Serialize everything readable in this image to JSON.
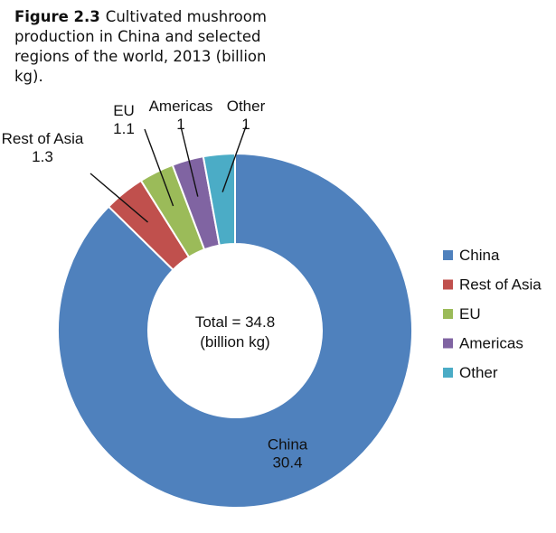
{
  "caption": {
    "figure_label": "Figure 2.3",
    "title": "Cultivated mushroom production in China and selected regions of the world, 2013 (billion kg)."
  },
  "chart_data": {
    "type": "pie",
    "variant": "donut",
    "center_text": [
      "Total = 34.8",
      "(billion kg)"
    ],
    "legend_position": "right",
    "slices": [
      {
        "name": "China",
        "value": 30.4,
        "value_label": "30.4",
        "color": "#4f81bd"
      },
      {
        "name": "Rest of Asia",
        "value": 1.3,
        "value_label": "1.3",
        "color": "#c0504d"
      },
      {
        "name": "EU",
        "value": 1.1,
        "value_label": "1.1",
        "color": "#9bbb59"
      },
      {
        "name": "Americas",
        "value": 1,
        "value_label": "1",
        "color": "#8064a2"
      },
      {
        "name": "Other",
        "value": 1,
        "value_label": "1",
        "color": "#4bacc6"
      }
    ]
  }
}
